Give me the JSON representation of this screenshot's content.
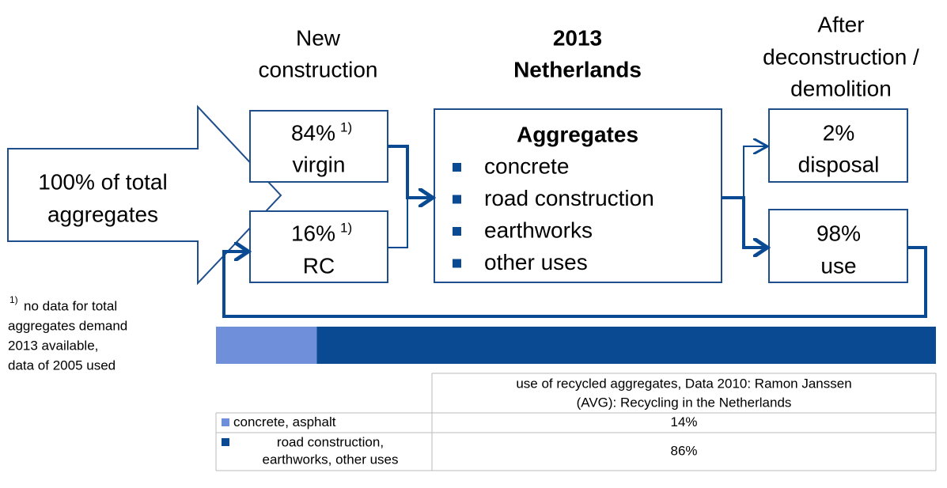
{
  "diagram": {
    "headers": {
      "new_construction": [
        "New",
        "construction"
      ],
      "center": [
        "2013",
        "Netherlands"
      ],
      "after": [
        "After",
        "deconstruction /",
        "demolition"
      ]
    },
    "source": {
      "lines": [
        "100% of total",
        "aggregates"
      ]
    },
    "virgin": {
      "percent": "84%",
      "note": "1)",
      "label": "virgin"
    },
    "rc": {
      "percent": "16%",
      "note": "1)",
      "label": "RC"
    },
    "aggregates": {
      "title": "Aggregates",
      "items": [
        "concrete",
        "road construction",
        "earthworks",
        "other uses"
      ]
    },
    "disposal": {
      "percent": "2%",
      "label": "disposal"
    },
    "use": {
      "percent": "98%",
      "label": "use"
    },
    "footnote": {
      "mark": "1)",
      "lines": [
        "no data for total",
        "aggregates demand",
        "2013 available,",
        "data of 2005 used"
      ]
    }
  },
  "table": {
    "header": [
      "use of recycled aggregates, Data 2010: Ramon Janssen",
      "(AVG): Recycling in the Netherlands"
    ],
    "rows": [
      {
        "label": [
          "concrete, asphalt"
        ],
        "value": 14,
        "value_label": "14%",
        "color": "#6f8fdb"
      },
      {
        "label": [
          "road construction,",
          "earthworks, other uses"
        ],
        "value": 86,
        "value_label": "86%",
        "color": "#0a4a92"
      }
    ]
  }
}
